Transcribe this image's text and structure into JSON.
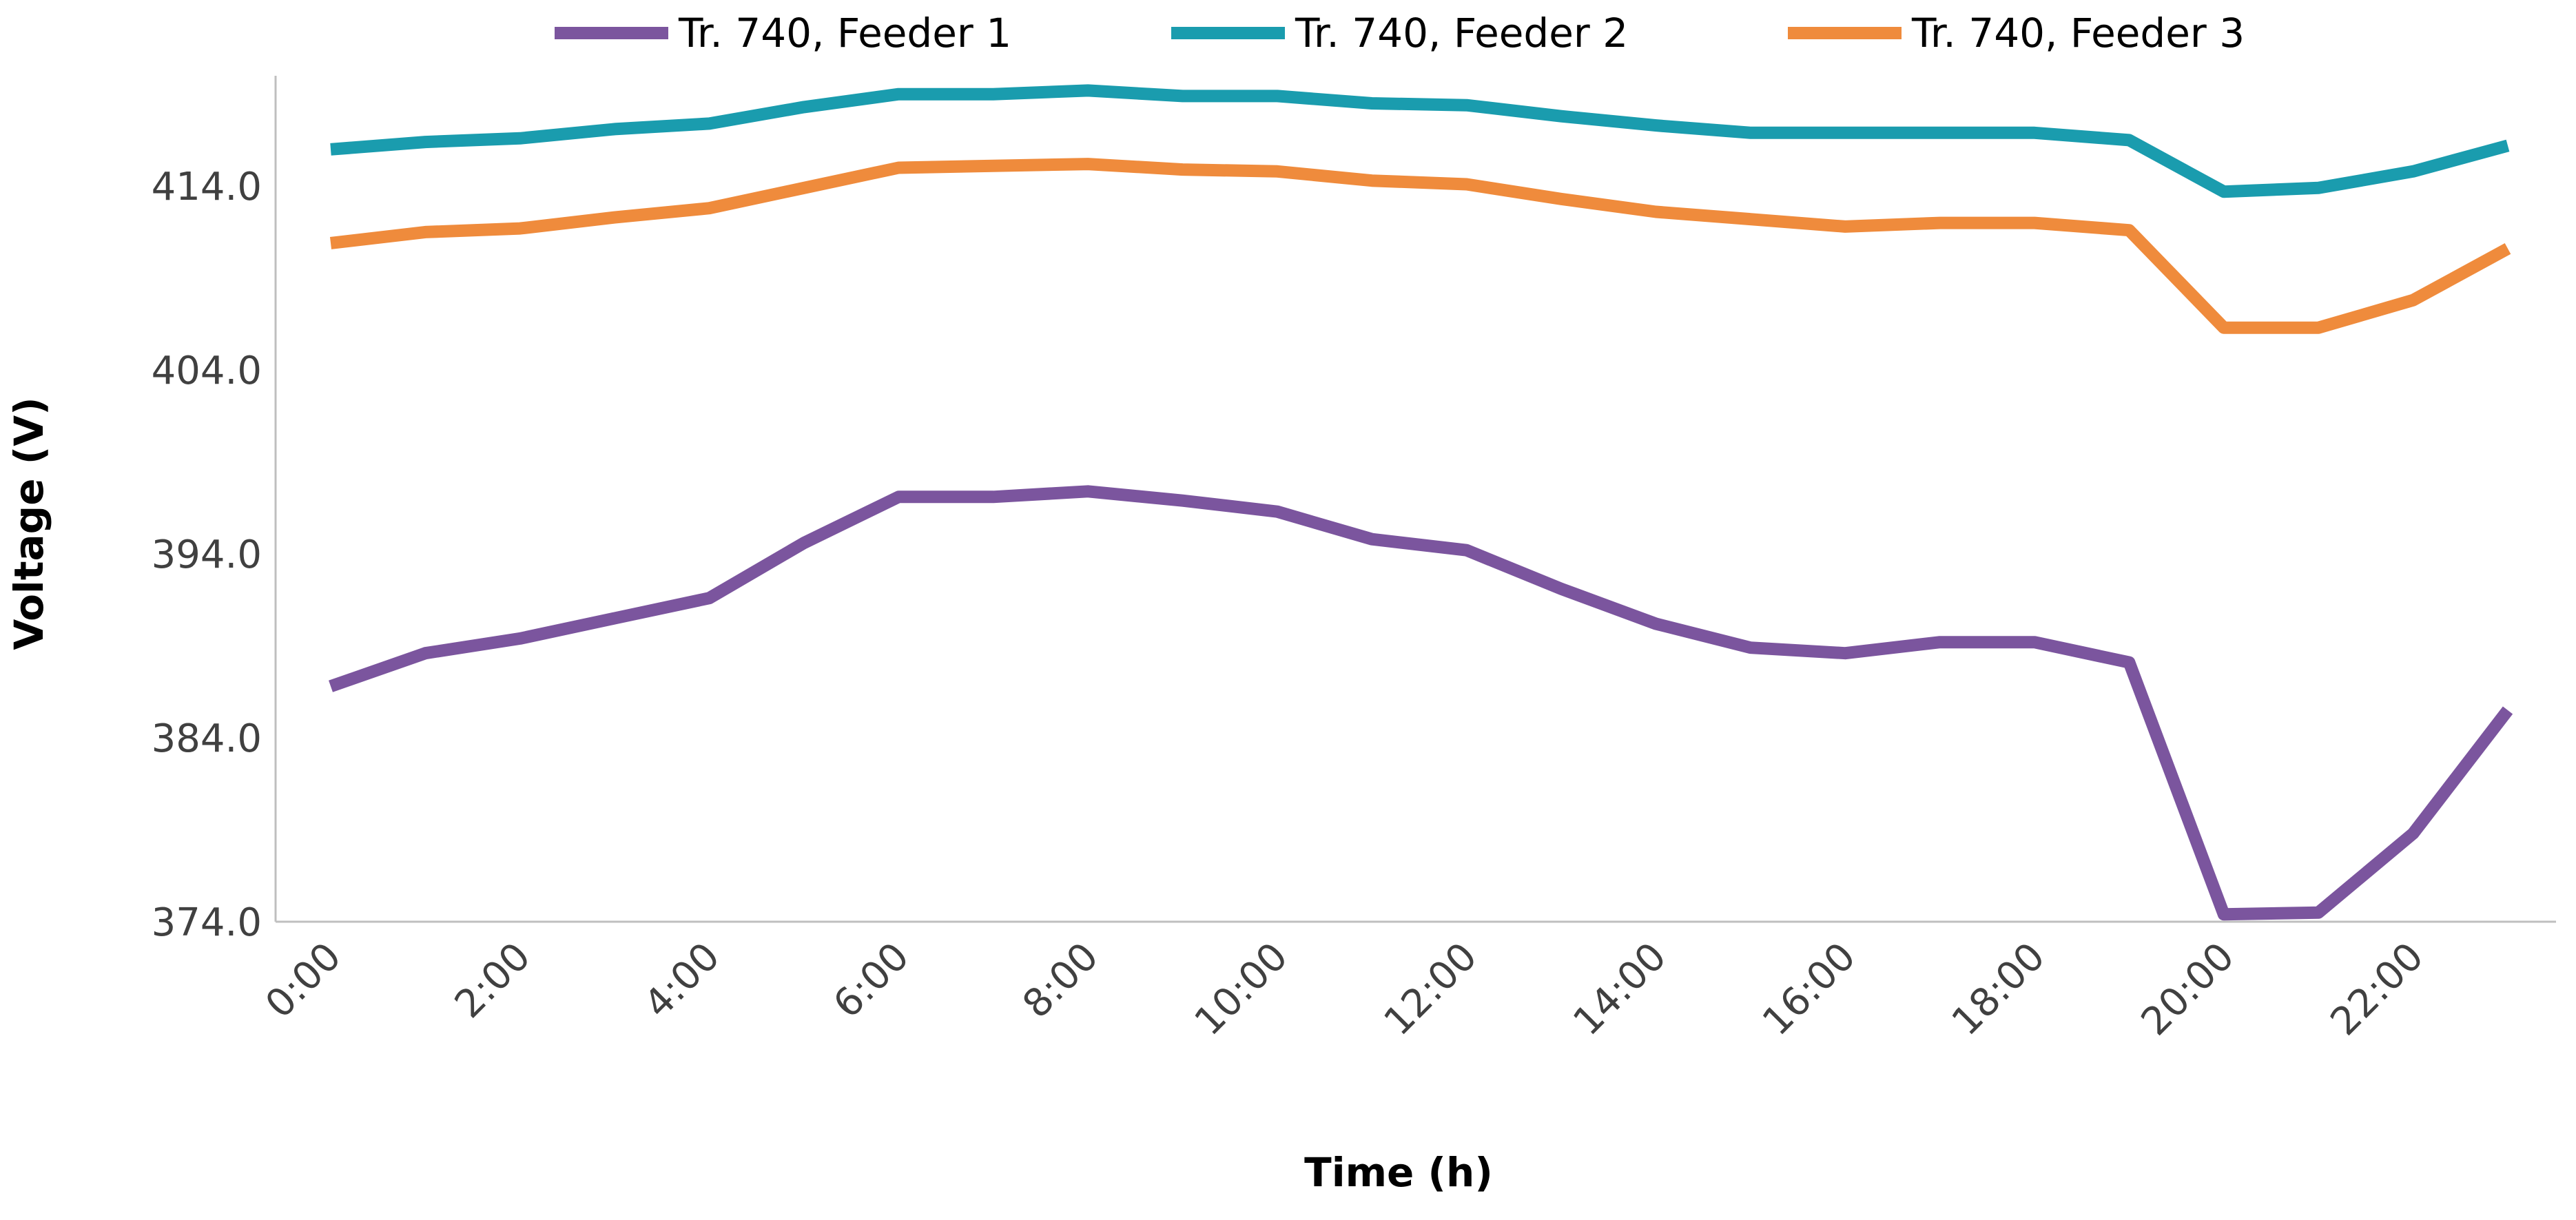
{
  "chart_data": {
    "type": "line",
    "title": "",
    "xlabel": "Time (h)",
    "ylabel": "Voltage (V)",
    "ylim": [
      374,
      420
    ],
    "yticks": [
      374.0,
      384.0,
      394.0,
      404.0,
      414.0
    ],
    "ytick_labels": [
      "374.0",
      "384.0",
      "394.0",
      "404.0",
      "414.0"
    ],
    "categories": [
      "0:00",
      "1:00",
      "2:00",
      "3:00",
      "4:00",
      "5:00",
      "6:00",
      "7:00",
      "8:00",
      "9:00",
      "10:00",
      "11:00",
      "12:00",
      "13:00",
      "14:00",
      "15:00",
      "16:00",
      "17:00",
      "18:00",
      "19:00",
      "20:00",
      "21:00",
      "22:00",
      "23:00"
    ],
    "xtick_labels": [
      "0:00",
      "2:00",
      "4:00",
      "6:00",
      "8:00",
      "10:00",
      "12:00",
      "14:00",
      "16:00",
      "18:00",
      "20:00",
      "22:00"
    ],
    "legend_position": "top",
    "grid": false,
    "series": [
      {
        "name": "Tr. 740, Feeder 1",
        "color": "#7B559E",
        "values": [
          386.8,
          388.6,
          389.4,
          390.5,
          391.6,
          394.6,
          397.1,
          397.1,
          397.4,
          396.9,
          396.3,
          394.8,
          394.2,
          392.1,
          390.2,
          388.9,
          388.6,
          389.2,
          389.2,
          388.1,
          374.4,
          374.5,
          378.8,
          385.5
        ]
      },
      {
        "name": "Tr. 740, Feeder 2",
        "color": "#1A9CAE",
        "values": [
          416.0,
          416.4,
          416.6,
          417.1,
          417.4,
          418.3,
          419.0,
          419.0,
          419.2,
          418.9,
          418.9,
          418.5,
          418.4,
          417.8,
          417.3,
          416.9,
          416.9,
          416.9,
          416.9,
          416.5,
          413.7,
          413.9,
          414.8,
          416.2
        ]
      },
      {
        "name": "Tr. 740, Feeder 3",
        "color": "#EF8B3C",
        "values": [
          410.9,
          411.5,
          411.7,
          412.3,
          412.8,
          413.9,
          415.0,
          415.1,
          415.2,
          414.9,
          414.8,
          414.3,
          414.1,
          413.3,
          412.6,
          412.2,
          411.8,
          412.0,
          412.0,
          411.6,
          406.3,
          406.3,
          407.8,
          410.6
        ]
      }
    ]
  }
}
